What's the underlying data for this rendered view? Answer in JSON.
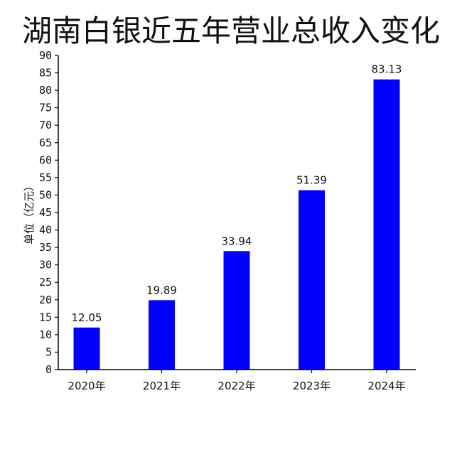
{
  "chart_data": {
    "type": "bar",
    "title": "湖南白银近五年营业总收入变化",
    "ylabel": "单位（亿元）",
    "xlabel": "",
    "categories": [
      "2020年",
      "2021年",
      "2022年",
      "2023年",
      "2024年"
    ],
    "values": [
      12.05,
      19.89,
      33.94,
      51.39,
      83.13
    ],
    "value_labels": [
      "12.05",
      "19.89",
      "33.94",
      "51.39",
      "83.13"
    ],
    "yticks": [
      "0",
      "5",
      "10",
      "15",
      "20",
      "25",
      "30",
      "35",
      "40",
      "45",
      "50",
      "55",
      "60",
      "65",
      "70",
      "75",
      "80",
      "85",
      "90"
    ],
    "ylim": [
      0,
      90
    ],
    "grid": false,
    "bar_color": "#0000ff",
    "axis_color": "#000000"
  }
}
